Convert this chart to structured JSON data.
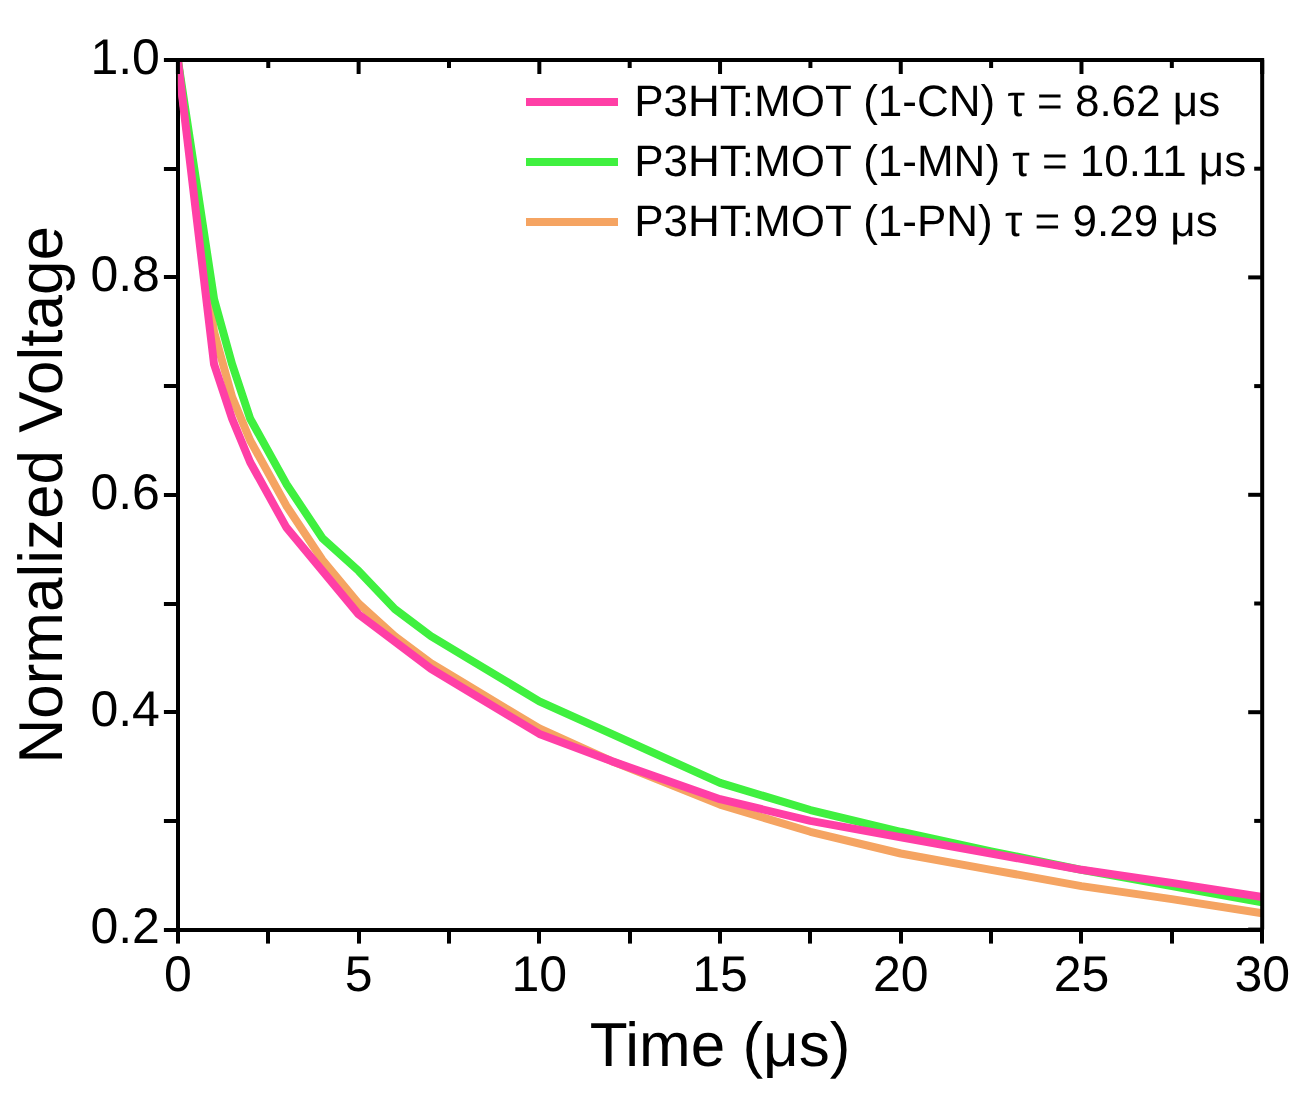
{
  "chart_data": {
    "type": "line",
    "xlabel": "Time (μs)",
    "ylabel": "Normalized Voltage",
    "x": [
      0,
      0.5,
      1,
      1.5,
      2,
      3,
      4,
      5,
      6,
      7,
      8,
      10,
      12,
      15,
      17.5,
      20,
      22.5,
      25,
      27.5,
      30
    ],
    "series": [
      {
        "name": "P3HT:MOT (1-CN)  τ = 8.62 μs",
        "color": "#ff3fa6",
        "values": [
          1.0,
          0.86,
          0.72,
          0.67,
          0.63,
          0.57,
          0.53,
          0.49,
          0.465,
          0.44,
          0.42,
          0.38,
          0.355,
          0.32,
          0.3,
          0.285,
          0.27,
          0.255,
          0.243,
          0.23
        ]
      },
      {
        "name": "P3HT:MOT (1-MN)  τ = 10.11 μs",
        "color": "#3ff03f",
        "values": [
          1.0,
          0.89,
          0.78,
          0.72,
          0.67,
          0.61,
          0.56,
          0.53,
          0.495,
          0.47,
          0.45,
          0.41,
          0.38,
          0.335,
          0.31,
          0.29,
          0.272,
          0.255,
          0.24,
          0.225
        ]
      },
      {
        "name": "P3HT:MOT (1-PN)  τ = 9.29 μs",
        "color": "#f5a462",
        "values": [
          1.0,
          0.87,
          0.75,
          0.69,
          0.65,
          0.59,
          0.54,
          0.5,
          0.47,
          0.445,
          0.425,
          0.385,
          0.355,
          0.315,
          0.29,
          0.27,
          0.255,
          0.24,
          0.228,
          0.215
        ]
      }
    ],
    "xlim": [
      0,
      30
    ],
    "xticks": [
      0,
      {
        "value": 2.5,
        "label": null
      },
      5,
      {
        "value": 7.5,
        "label": null
      },
      10,
      {
        "value": 12.5,
        "label": null
      },
      15,
      {
        "value": 17.5,
        "label": null
      },
      20,
      {
        "value": 22.5,
        "label": null
      },
      25,
      {
        "value": 27.5,
        "label": null
      },
      30
    ],
    "ylim": [
      0.2,
      1.0
    ],
    "yticks": [
      0.2,
      {
        "value": 0.3,
        "label": null
      },
      0.4,
      {
        "value": 0.5,
        "label": null
      },
      0.6,
      {
        "value": 0.7,
        "label": null
      },
      0.8,
      {
        "value": 0.9,
        "label": null
      },
      {
        "value": 1.0,
        "label": "1.0"
      }
    ],
    "grid": false,
    "legend": "top right",
    "marker": "none",
    "line_style": "solid"
  }
}
